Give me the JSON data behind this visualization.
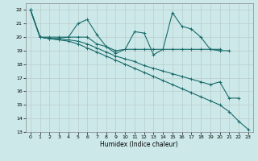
{
  "xlabel": "Humidex (Indice chaleur)",
  "ylabel": "",
  "xlim": [
    -0.5,
    23.5
  ],
  "ylim": [
    13,
    22.5
  ],
  "yticks": [
    13,
    14,
    15,
    16,
    17,
    18,
    19,
    20,
    21,
    22
  ],
  "xticks": [
    0,
    1,
    2,
    3,
    4,
    5,
    6,
    7,
    8,
    9,
    10,
    11,
    12,
    13,
    14,
    15,
    16,
    17,
    18,
    19,
    20,
    21,
    22,
    23
  ],
  "bg_color": "#cce8e8",
  "grid_color": "#bbcccc",
  "line_color": "#1a6b6b",
  "series": [
    {
      "x": [
        0,
        1,
        2,
        3,
        4,
        5,
        6,
        7,
        8,
        9,
        10,
        11,
        12,
        13,
        14,
        15,
        16,
        17,
        18,
        19,
        20
      ],
      "y": [
        22,
        20,
        20,
        20,
        20,
        20,
        20,
        19.5,
        19.3,
        19.0,
        19.1,
        19.1,
        19.1,
        19.1,
        19.1,
        19.1,
        19.1,
        19.1,
        19.1,
        19.1,
        19.1
      ]
    },
    {
      "x": [
        0,
        1,
        2,
        3,
        4,
        5,
        6,
        7,
        8,
        9,
        10,
        11,
        12,
        13,
        14,
        15,
        16,
        17,
        18,
        19,
        20,
        21
      ],
      "y": [
        22,
        20,
        19.9,
        19.9,
        20.0,
        21.0,
        21.3,
        20.2,
        19.3,
        18.8,
        19.1,
        20.4,
        20.3,
        18.7,
        19.1,
        21.8,
        20.8,
        20.6,
        20.0,
        19.1,
        19.0,
        19.0
      ]
    },
    {
      "x": [
        0,
        1,
        2,
        3,
        4,
        5,
        6,
        7,
        8,
        9,
        10,
        11,
        12,
        13,
        14,
        15,
        16,
        17,
        18,
        19,
        20,
        21,
        22
      ],
      "y": [
        22,
        20,
        19.9,
        19.8,
        19.8,
        19.7,
        19.5,
        19.2,
        18.9,
        18.6,
        18.4,
        18.2,
        17.9,
        17.7,
        17.5,
        17.3,
        17.1,
        16.9,
        16.7,
        16.5,
        16.7,
        15.5,
        15.5
      ]
    },
    {
      "x": [
        0,
        1,
        2,
        3,
        4,
        5,
        6,
        7,
        8,
        9,
        10,
        11,
        12,
        13,
        14,
        15,
        16,
        17,
        18,
        19,
        20,
        21,
        22,
        23
      ],
      "y": [
        22,
        20,
        19.9,
        19.8,
        19.7,
        19.5,
        19.2,
        18.9,
        18.6,
        18.3,
        18.0,
        17.7,
        17.4,
        17.1,
        16.8,
        16.5,
        16.2,
        15.9,
        15.6,
        15.3,
        15.0,
        14.5,
        13.8,
        13.2
      ]
    }
  ]
}
